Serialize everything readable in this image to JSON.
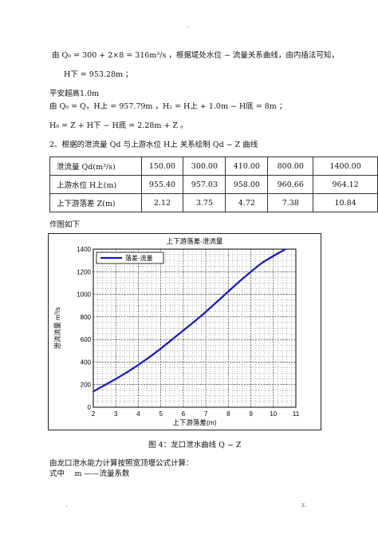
{
  "header_mark": "·",
  "lines": {
    "l1": "由 Q₀ = 300 + 2×8 = 316m³/s ，根据堤处水位 ~ 流量关系曲线，由内插法可知，",
    "l2": "H下 = 953.28m ；",
    "l3": "平安超高1.0m",
    "l4": "由 Q₀ = Q，H上 = 957.79m ，H₂ = H上 + 1.0m − H底 = 8m ；",
    "l5": "H₀ = Z + H下 − H底 = 2.28m + Z 。",
    "l6": "2、根据的泄流量 Qd 与上游水位 H上 关系绘制 Qd ~ Z 曲线"
  },
  "table": {
    "rows": [
      {
        "label": "泄流量 Qd(m³/s)",
        "values": [
          "150.00",
          "300.00",
          "410.00",
          "800.00",
          "1400.00"
        ]
      },
      {
        "label": "上游水位 H上(m)",
        "values": [
          "955.40",
          "957.03",
          "958.00",
          "960.66",
          "964.12"
        ]
      },
      {
        "label": "上下游落差 Z(m)",
        "values": [
          "2.12",
          "3.75",
          "4.72",
          "7.38",
          "10.84"
        ]
      }
    ]
  },
  "zuotu": "作图如下",
  "caption": "图 4：龙口泄水曲线 Q ~ Z",
  "after1": "由龙口泄水能力计算按照宽顶堰公式计算：",
  "after2": "式中　 m ——流量系数",
  "footer_left": ".",
  "footer_right": "z.",
  "chart_data": {
    "type": "line",
    "title": "上下游落差-泄流量",
    "xlabel": "上下游落差(m)",
    "ylabel": "泄流流量 m³/s",
    "xlim": [
      2,
      11
    ],
    "ylim": [
      0,
      1400
    ],
    "xticks": [
      2,
      3,
      4,
      5,
      6,
      7,
      8,
      9,
      10,
      11
    ],
    "yticks": [
      0,
      200,
      400,
      600,
      800,
      1000,
      1200,
      1400
    ],
    "grid": true,
    "legend": "top-left",
    "series": [
      {
        "name": "落差-流量",
        "color": "#1414c8",
        "x": [
          2.0,
          2.5,
          3.0,
          3.5,
          4.0,
          4.5,
          5.0,
          5.5,
          6.0,
          6.5,
          7.0,
          7.5,
          8.0,
          8.5,
          9.0,
          9.5,
          10.0,
          10.5,
          11.0
        ],
        "y": [
          140,
          195,
          250,
          310,
          375,
          445,
          520,
          600,
          680,
          760,
          845,
          935,
          1025,
          1115,
          1200,
          1280,
          1340,
          1395,
          1450
        ]
      }
    ]
  }
}
